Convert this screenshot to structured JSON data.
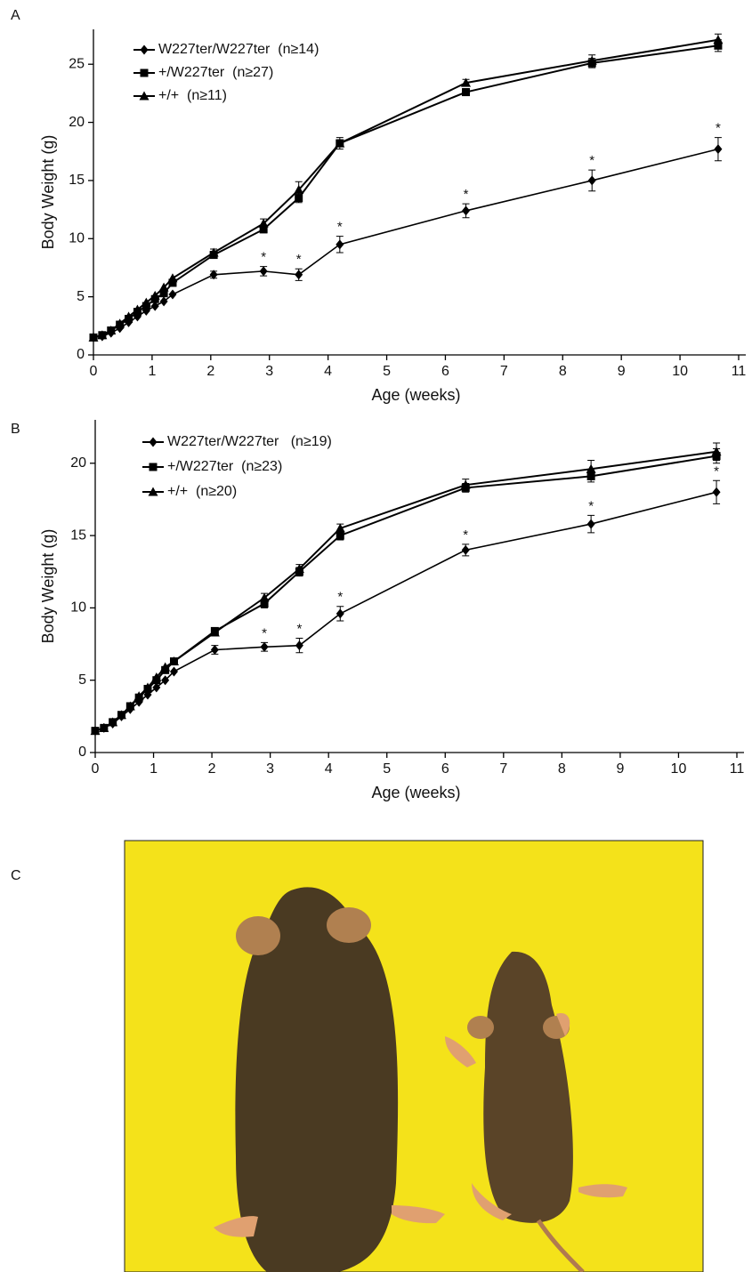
{
  "chart_data": [
    {
      "type": "line",
      "panel_label": "A",
      "xlabel": "Age (weeks)",
      "ylabel": "Body Weight (g)",
      "legend": "upper left",
      "x": [
        0,
        0.15,
        0.3,
        0.45,
        0.6,
        0.75,
        0.9,
        1.05,
        1.2,
        1.35,
        2.05,
        2.9,
        3.5,
        4.2,
        6.35,
        8.5,
        10.65
      ],
      "xlim": [
        0,
        11
      ],
      "xticks": [
        0,
        1,
        2,
        3,
        4,
        5,
        6,
        7,
        8,
        9,
        10,
        11
      ],
      "ylim": [
        0,
        28
      ],
      "yticks": [
        0,
        5,
        10,
        15,
        20,
        25
      ],
      "series": [
        {
          "name": "W227ter/W227ter  (n≥14)",
          "color": "#000000",
          "marker": "diamond",
          "values": [
            1.5,
            1.6,
            1.9,
            2.3,
            2.8,
            3.3,
            3.8,
            4.2,
            4.6,
            5.2,
            6.9,
            7.2,
            6.9,
            9.5,
            12.4,
            15.0,
            17.7
          ],
          "errors": [
            null,
            null,
            null,
            null,
            null,
            null,
            null,
            null,
            null,
            null,
            0.3,
            0.4,
            0.5,
            0.7,
            0.6,
            0.9,
            1.0
          ],
          "significance": [
            null,
            null,
            null,
            null,
            null,
            null,
            null,
            null,
            null,
            null,
            null,
            "*",
            "*",
            "*",
            "*",
            "*",
            "*"
          ]
        },
        {
          "name": "+/W227ter  (n≥27)",
          "color": "#000000",
          "marker": "square",
          "values": [
            1.5,
            1.7,
            2.1,
            2.6,
            3.1,
            3.7,
            4.2,
            4.8,
            5.3,
            6.2,
            8.6,
            10.8,
            13.5,
            18.2,
            22.6,
            25.1,
            26.6
          ],
          "errors": [
            null,
            null,
            null,
            null,
            null,
            null,
            null,
            null,
            null,
            null,
            0.3,
            0.3,
            0.4,
            0.3,
            0.3,
            0.4,
            0.5
          ]
        },
        {
          "name": "+/+  (n≥11)",
          "color": "#000000",
          "marker": "triangle",
          "values": [
            1.5,
            1.7,
            2.1,
            2.7,
            3.3,
            3.9,
            4.5,
            5.1,
            5.8,
            6.6,
            8.8,
            11.3,
            14.2,
            18.2,
            23.4,
            25.3,
            27.1
          ],
          "errors": [
            null,
            null,
            null,
            null,
            null,
            null,
            null,
            null,
            null,
            null,
            0.3,
            0.4,
            0.7,
            0.5,
            0.3,
            0.5,
            0.5
          ]
        }
      ]
    },
    {
      "type": "line",
      "panel_label": "B",
      "xlabel": "Age (weeks)",
      "ylabel": "Body Weight (g)",
      "legend": "upper left",
      "x": [
        0,
        0.15,
        0.3,
        0.45,
        0.6,
        0.75,
        0.9,
        1.05,
        1.2,
        1.35,
        2.05,
        2.9,
        3.5,
        4.2,
        6.35,
        8.5,
        10.65
      ],
      "xlim": [
        0,
        11
      ],
      "xticks": [
        0,
        1,
        2,
        3,
        4,
        5,
        6,
        7,
        8,
        9,
        10,
        11
      ],
      "ylim": [
        0,
        23
      ],
      "yticks": [
        0,
        5,
        10,
        15,
        20
      ],
      "series": [
        {
          "name": "W227ter/W227ter   (n≥19)",
          "color": "#000000",
          "marker": "diamond",
          "values": [
            1.5,
            1.7,
            2.0,
            2.5,
            3.0,
            3.5,
            4.0,
            4.5,
            5.0,
            5.6,
            7.1,
            7.3,
            7.4,
            9.6,
            14.0,
            15.8,
            18.0
          ],
          "errors": [
            null,
            null,
            null,
            null,
            null,
            null,
            null,
            null,
            null,
            null,
            0.3,
            0.3,
            0.5,
            0.5,
            0.4,
            0.6,
            0.8
          ],
          "significance": [
            null,
            null,
            null,
            null,
            null,
            null,
            null,
            null,
            null,
            null,
            null,
            "*",
            "*",
            "*",
            "*",
            "*",
            "*"
          ]
        },
        {
          "name": "+/W227ter  (n≥23)",
          "color": "#000000",
          "marker": "square",
          "values": [
            1.5,
            1.7,
            2.1,
            2.6,
            3.2,
            3.8,
            4.4,
            5.0,
            5.7,
            6.3,
            8.4,
            10.3,
            12.5,
            15.0,
            18.3,
            19.1,
            20.5
          ],
          "errors": [
            null,
            null,
            null,
            null,
            null,
            null,
            null,
            null,
            null,
            null,
            0.2,
            0.3,
            0.3,
            0.3,
            0.3,
            0.4,
            0.5
          ]
        },
        {
          "name": "+/+  (n≥20)",
          "color": "#000000",
          "marker": "triangle",
          "values": [
            1.5,
            1.7,
            2.1,
            2.6,
            3.2,
            3.9,
            4.5,
            5.2,
            5.9,
            6.3,
            8.3,
            10.7,
            12.7,
            15.5,
            18.5,
            19.6,
            20.8
          ],
          "errors": [
            null,
            null,
            null,
            null,
            null,
            null,
            null,
            null,
            null,
            null,
            0.2,
            0.3,
            0.3,
            0.3,
            0.4,
            0.6,
            0.6
          ]
        }
      ]
    }
  ],
  "photo": {
    "panel_label": "C"
  }
}
